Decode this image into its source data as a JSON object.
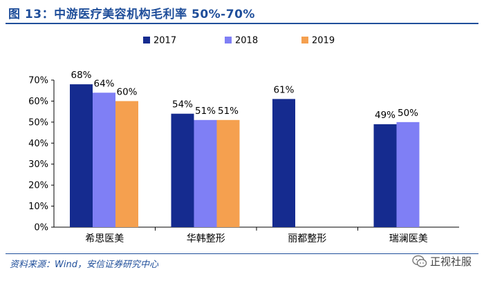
{
  "header": {
    "title": "图 13：中游医疗美容机构毛利率 50%-70%"
  },
  "footer": {
    "source": "资料来源：Wind，安信证券研究中心",
    "watermark": "正视社服"
  },
  "chart_data": {
    "type": "bar",
    "title": "图 13：中游医疗美容机构毛利率 50%-70%",
    "xlabel": "",
    "ylabel": "",
    "ylim": [
      0,
      70
    ],
    "yticks": [
      "0%",
      "10%",
      "20%",
      "30%",
      "40%",
      "50%",
      "60%",
      "70%"
    ],
    "categories": [
      "希思医美",
      "华韩整形",
      "丽都整形",
      "瑞澜医美"
    ],
    "legend_position": "top-center",
    "grid": false,
    "series": [
      {
        "name": "2017",
        "color": "#152b8f",
        "values": [
          68,
          54,
          61,
          49
        ],
        "labels": [
          "68%",
          "54%",
          "61%",
          "49%"
        ]
      },
      {
        "name": "2018",
        "color": "#7f7ff5",
        "values": [
          64,
          51,
          null,
          50
        ],
        "labels": [
          "64%",
          "51%",
          null,
          "50%"
        ]
      },
      {
        "name": "2019",
        "color": "#f5a04f",
        "values": [
          60,
          51,
          null,
          null
        ],
        "labels": [
          "60%",
          "51%",
          null,
          null
        ]
      }
    ]
  }
}
